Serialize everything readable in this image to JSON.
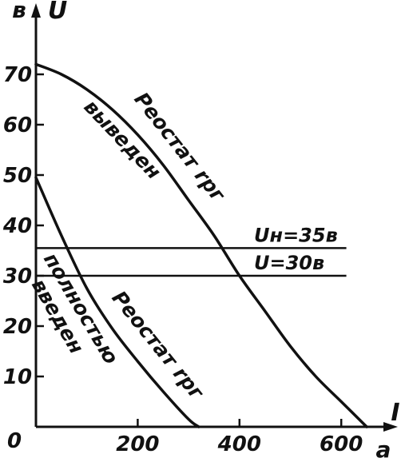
{
  "chart_data": {
    "type": "line",
    "title": "",
    "xlabel": "I",
    "ylabel": "U",
    "x_unit": "a",
    "y_unit": "в",
    "origin_label": "0",
    "xlim": [
      0,
      680
    ],
    "ylim": [
      0,
      72
    ],
    "x_ticks": [
      200,
      400,
      600
    ],
    "y_ticks": [
      10,
      20,
      30,
      40,
      50,
      60,
      70
    ],
    "x_tick_labels": [
      "200",
      "400",
      "600"
    ],
    "y_tick_labels": [
      "10",
      "20",
      "30",
      "40",
      "50",
      "60",
      "70"
    ],
    "grid": false,
    "series": [
      {
        "name": "Реостат rрг выведен",
        "x": [
          0,
          50,
          100,
          150,
          200,
          250,
          300,
          350,
          400,
          450,
          500,
          550,
          600,
          650
        ],
        "y": [
          72,
          70,
          67,
          63,
          58,
          52,
          45,
          38,
          30,
          23,
          16,
          10,
          5,
          0
        ]
      },
      {
        "name": "Реостат rрг полностью введен",
        "x": [
          0,
          50,
          100,
          150,
          200,
          250,
          300,
          320
        ],
        "y": [
          49.5,
          38,
          27.5,
          19.5,
          13,
          7,
          1.5,
          0
        ]
      }
    ],
    "hlines": [
      {
        "label": "Uн=35в",
        "y": 35.5,
        "x_end": 610
      },
      {
        "label": "U=30в",
        "y": 30,
        "x_end": 610
      }
    ],
    "curve_labels": [
      {
        "text": "Реостат rрг",
        "series": 0,
        "at_x": 245,
        "offset": -22
      },
      {
        "text": "выведен",
        "series": 0,
        "at_x": 190,
        "offset": 26
      },
      {
        "text": "Реостат rрг",
        "series": 1,
        "at_x": 200,
        "offset": -24
      },
      {
        "text": "полностью",
        "series": 1,
        "at_x": 115,
        "offset": 28
      },
      {
        "text": "введен",
        "series": 1,
        "at_x": 110,
        "offset": 58
      }
    ]
  }
}
